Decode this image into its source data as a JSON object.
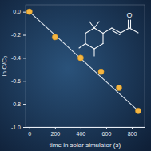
{
  "chart_data": {
    "type": "scatter",
    "x_label": "time in solar simulator (s)",
    "y_label": "ln C/C₀",
    "annotations": [
      "O"
    ],
    "xlim": [
      -30,
      900
    ],
    "xticks": [
      0,
      200,
      400,
      600,
      800
    ],
    "ylim": [
      -1.0,
      0.06
    ],
    "yticks": [
      {
        "value": 0.0,
        "label": "0.0"
      },
      -0.2,
      -0.4,
      -0.6,
      -0.8,
      {
        "value": -1.0,
        "label": "-1.0"
      }
    ],
    "grid": false,
    "series": [
      {
        "type": "scatter",
        "marker": "circle",
        "color": "#f5b642",
        "x": [
          0,
          200,
          400,
          560,
          700,
          850
        ],
        "values": [
          0.0,
          -0.22,
          -0.4,
          -0.52,
          -0.66,
          -0.86
        ]
      },
      {
        "type": "line",
        "line_style": "solid",
        "color": "#dfe6ee",
        "x": [
          0,
          870
        ],
        "values": [
          0.0,
          -0.88
        ]
      }
    ]
  }
}
